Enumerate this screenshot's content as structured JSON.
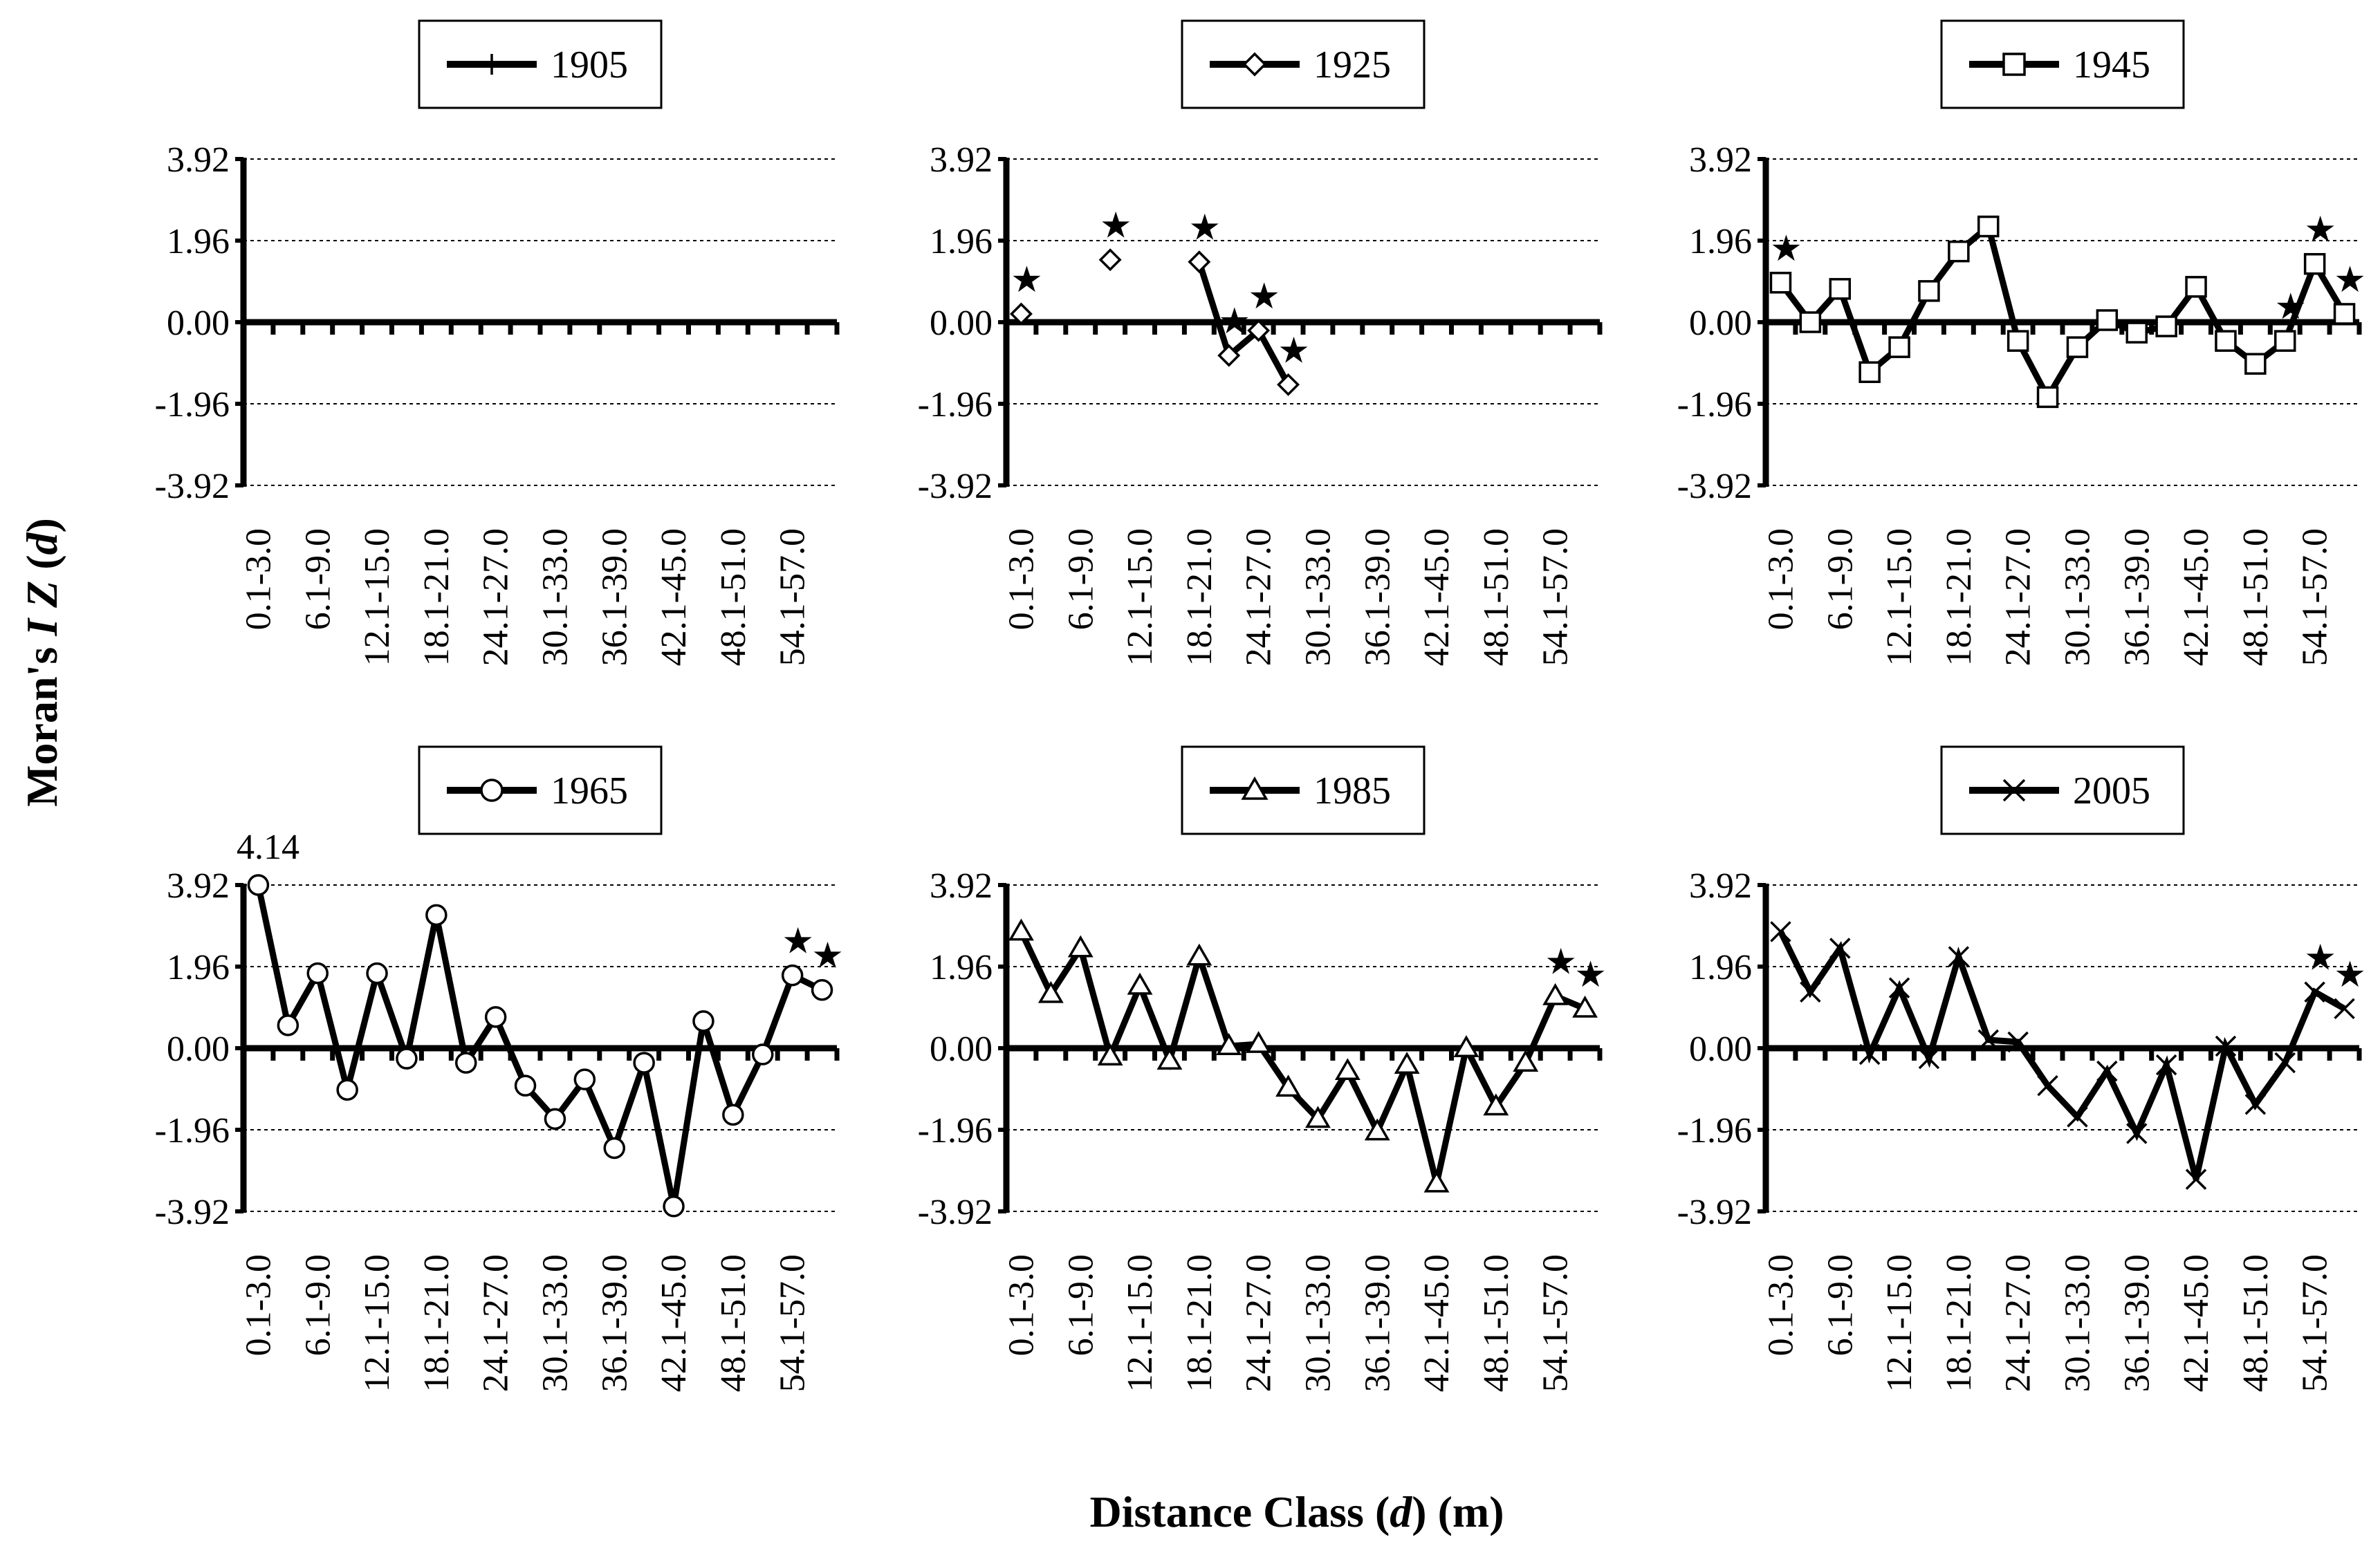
{
  "figure": {
    "y_axis_title_pre": "Moran's ",
    "y_axis_title_italic": "I Z",
    "y_axis_title_open": " (",
    "y_axis_title_var": "d",
    "y_axis_title_close": ")",
    "x_axis_title_pre": "Distance Class (",
    "x_axis_title_var": "d",
    "x_axis_title_post": ") (m)",
    "significance_marker": "★"
  },
  "chart_data": [
    {
      "type": "line",
      "title": "1905",
      "legend_label": "1905",
      "marker": "plus",
      "xlabel": "Distance Class (d) (m)",
      "ylabel": "Moran's I Z (d)",
      "ylim": [
        -3.92,
        3.92
      ],
      "yticks": [
        "3.92",
        "1.96",
        "0.00",
        "-1.96",
        "-3.92"
      ],
      "x_tick_labels": [
        "0.1-3.0",
        "6.1-9.0",
        "12.1-15.0",
        "18.1-21.0",
        "24.1-27.0",
        "30.1-33.0",
        "36.1-39.0",
        "42.1-45.0",
        "48.1-51.0",
        "54.1-57.0"
      ],
      "categories_count": 20,
      "values": [],
      "significant": [],
      "annotation": ""
    },
    {
      "type": "line",
      "title": "1925",
      "legend_label": "1925",
      "marker": "diamond",
      "xlabel": "Distance Class (d) (m)",
      "ylabel": "Moran's I Z (d)",
      "ylim": [
        -3.92,
        3.92
      ],
      "yticks": [
        "3.92",
        "1.96",
        "0.00",
        "-1.96",
        "-3.92"
      ],
      "x_tick_labels": [
        "0.1-3.0",
        "6.1-9.0",
        "12.1-15.0",
        "18.1-21.0",
        "24.1-27.0",
        "30.1-33.0",
        "36.1-39.0",
        "42.1-45.0",
        "48.1-51.0",
        "54.1-57.0"
      ],
      "categories_count": 20,
      "values": [
        0.2,
        null,
        null,
        1.5,
        null,
        null,
        1.45,
        -0.8,
        -0.2,
        -1.5,
        null,
        null,
        null,
        null,
        null,
        null,
        null,
        null,
        null,
        null
      ],
      "significant": [
        0,
        3,
        6,
        7,
        8,
        9
      ],
      "annotation": ""
    },
    {
      "type": "line",
      "title": "1945",
      "legend_label": "1945",
      "marker": "square",
      "xlabel": "Distance Class (d) (m)",
      "ylabel": "Moran's I Z (d)",
      "ylim": [
        -3.92,
        3.92
      ],
      "yticks": [
        "3.92",
        "1.96",
        "0.00",
        "-1.96",
        "-3.92"
      ],
      "x_tick_labels": [
        "0.1-3.0",
        "6.1-9.0",
        "12.1-15.0",
        "18.1-21.0",
        "24.1-27.0",
        "30.1-33.0",
        "36.1-39.0",
        "42.1-45.0",
        "48.1-51.0",
        "54.1-57.0"
      ],
      "categories_count": 20,
      "values": [
        0.95,
        0.0,
        0.8,
        -1.2,
        -0.6,
        0.75,
        1.7,
        2.3,
        -0.45,
        -1.8,
        -0.6,
        0.05,
        -0.25,
        -0.1,
        0.85,
        -0.45,
        -1.0,
        -0.45,
        1.4,
        0.2
      ],
      "significant": [
        0,
        17,
        18,
        19
      ],
      "annotation": ""
    },
    {
      "type": "line",
      "title": "1965",
      "legend_label": "1965",
      "marker": "circle",
      "xlabel": "Distance Class (d) (m)",
      "ylabel": "Moran's I Z (d)",
      "ylim": [
        -3.92,
        3.92
      ],
      "yticks": [
        "3.92",
        "1.96",
        "0.00",
        "-1.96",
        "-3.92"
      ],
      "x_tick_labels": [
        "0.1-3.0",
        "6.1-9.0",
        "12.1-15.0",
        "18.1-21.0",
        "24.1-27.0",
        "30.1-33.0",
        "36.1-39.0",
        "42.1-45.0",
        "48.1-51.0",
        "54.1-57.0"
      ],
      "categories_count": 20,
      "values": [
        4.14,
        0.55,
        1.8,
        -1.0,
        1.8,
        -0.25,
        3.2,
        -0.35,
        0.75,
        -0.9,
        -1.7,
        -0.75,
        -2.4,
        -0.35,
        -3.8,
        0.65,
        -1.6,
        -0.15,
        1.75,
        1.4
      ],
      "significant": [
        18,
        19
      ],
      "annotation": "4.14"
    },
    {
      "type": "line",
      "title": "1985",
      "legend_label": "1985",
      "marker": "triangle",
      "xlabel": "Distance Class (d) (m)",
      "ylabel": "Moran's I Z (d)",
      "ylim": [
        -3.92,
        3.92
      ],
      "yticks": [
        "3.92",
        "1.96",
        "0.00",
        "-1.96",
        "-3.92"
      ],
      "x_tick_labels": [
        "0.1-3.0",
        "6.1-9.0",
        "12.1-15.0",
        "18.1-21.0",
        "24.1-27.0",
        "30.1-33.0",
        "36.1-39.0",
        "42.1-45.0",
        "48.1-51.0",
        "54.1-57.0"
      ],
      "categories_count": 20,
      "values": [
        2.8,
        1.3,
        2.4,
        -0.2,
        1.5,
        -0.3,
        2.2,
        0.05,
        0.1,
        -0.95,
        -1.7,
        -0.55,
        -2.0,
        -0.4,
        -3.25,
        0.0,
        -1.4,
        -0.35,
        1.25,
        0.95
      ],
      "significant": [
        18,
        19
      ],
      "annotation": ""
    },
    {
      "type": "line",
      "title": "2005",
      "legend_label": "2005",
      "marker": "x",
      "xlabel": "Distance Class (d) (m)",
      "ylabel": "Moran's I Z (d)",
      "ylim": [
        -3.92,
        3.92
      ],
      "yticks": [
        "3.92",
        "1.96",
        "0.00",
        "-1.96",
        "-3.92"
      ],
      "x_tick_labels": [
        "0.1-3.0",
        "6.1-9.0",
        "12.1-15.0",
        "18.1-21.0",
        "24.1-27.0",
        "30.1-33.0",
        "36.1-39.0",
        "42.1-45.0",
        "48.1-51.0",
        "54.1-57.0"
      ],
      "categories_count": 20,
      "values": [
        2.8,
        1.35,
        2.4,
        -0.15,
        1.45,
        -0.25,
        2.2,
        0.2,
        0.15,
        -0.9,
        -1.65,
        -0.55,
        -2.05,
        -0.4,
        -3.15,
        0.05,
        -1.35,
        -0.35,
        1.35,
        0.95
      ],
      "significant": [
        18,
        19
      ],
      "annotation": ""
    }
  ]
}
